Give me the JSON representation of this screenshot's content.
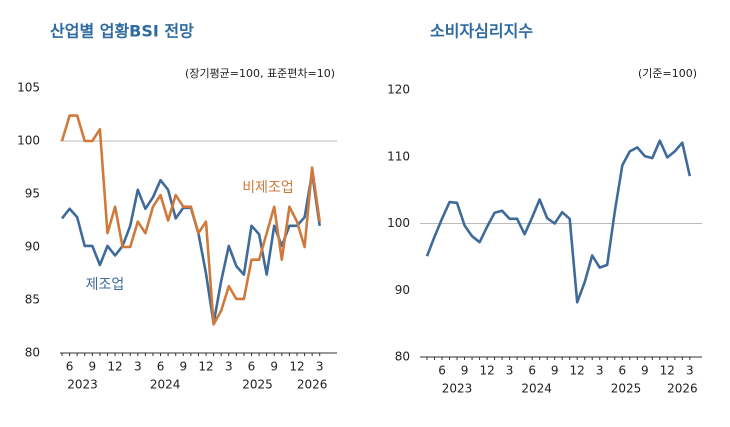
{
  "chart_data": [
    {
      "type": "line",
      "title": "산업별 업황BSI 전망",
      "note": "(장기평균=100, 표준편차=10)",
      "categories": [
        null,
        "6",
        null,
        null,
        "9",
        null,
        null,
        "12",
        null,
        null,
        "3",
        null,
        null,
        "6",
        null,
        null,
        "9",
        null,
        null,
        "12",
        null,
        null,
        "3",
        null,
        null,
        "6",
        null,
        null,
        "9",
        null,
        null,
        "12",
        null,
        null,
        "3"
      ],
      "x_group_labels": [
        "2023",
        "2024",
        "2025",
        "2026"
      ],
      "series": [
        {
          "name": "제조업",
          "color": "#3f6b9b",
          "values": [
            92.7,
            93.6,
            92.8,
            90.1,
            90.1,
            88.3,
            90.1,
            89.2,
            90.1,
            92.0,
            95.4,
            93.6,
            94.7,
            96.3,
            95.4,
            92.7,
            93.7,
            93.7,
            91.3,
            87.5,
            82.8,
            86.8,
            90.1,
            88.2,
            87.4,
            92.0,
            91.2,
            87.4,
            92.0,
            90.1,
            92.0,
            92.0,
            92.8,
            97.0,
            92.0
          ]
        },
        {
          "name": "비제조업",
          "color": "#cf7a3c",
          "values": [
            100.0,
            102.4,
            102.4,
            100.0,
            100.0,
            101.1,
            91.3,
            93.8,
            90.0,
            90.0,
            92.4,
            91.3,
            93.8,
            94.9,
            92.5,
            94.9,
            93.8,
            93.8,
            91.3,
            92.4,
            82.7,
            84.0,
            86.3,
            85.1,
            85.1,
            88.8,
            88.8,
            91.3,
            93.8,
            88.8,
            93.8,
            92.4,
            90.0,
            97.5,
            92.4
          ]
        }
      ],
      "ylim": [
        80,
        105
      ],
      "yticks": [
        80,
        85,
        90,
        95,
        100,
        105
      ],
      "grid_lines": [
        100
      ]
    },
    {
      "type": "line",
      "title": "소비자심리지수",
      "note": "(기준=100)",
      "categories": [
        null,
        null,
        "6",
        null,
        null,
        "9",
        null,
        null,
        "12",
        null,
        null,
        "3",
        null,
        null,
        "6",
        null,
        null,
        "9",
        null,
        null,
        "12",
        null,
        null,
        "3",
        null,
        null,
        "6",
        null,
        null,
        "9",
        null,
        null,
        "12",
        null,
        null,
        "3"
      ],
      "x_group_labels": [
        "2023",
        "2024",
        "2025",
        "2026"
      ],
      "series": [
        {
          "name": "소비자심리지수",
          "color": "#3f6b9b",
          "values": [
            95.1,
            98.0,
            100.7,
            103.2,
            103.1,
            99.7,
            98.1,
            97.2,
            99.5,
            101.6,
            101.9,
            100.7,
            100.7,
            98.4,
            100.9,
            103.6,
            100.8,
            100.0,
            101.7,
            100.7,
            88.2,
            91.2,
            95.2,
            93.4,
            93.8,
            101.8,
            108.7,
            110.8,
            111.4,
            110.1,
            109.8,
            112.4,
            109.9,
            110.8,
            112.1,
            107.1
          ]
        }
      ],
      "ylim": [
        80,
        120
      ],
      "yticks": [
        80,
        90,
        100,
        110,
        120
      ],
      "grid_lines": [
        100
      ]
    }
  ]
}
